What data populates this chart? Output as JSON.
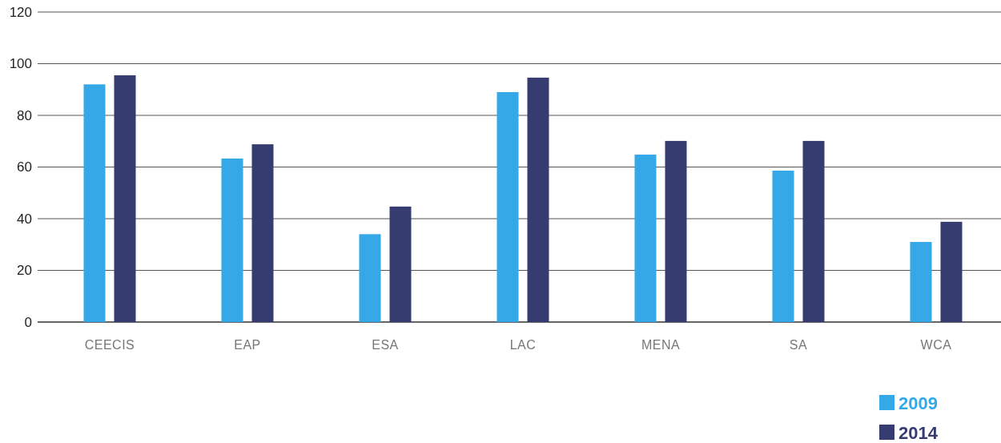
{
  "chart_data": {
    "type": "bar",
    "categories": [
      "CEECIS",
      "EAP",
      "ESA",
      "LAC",
      "MENA",
      "SA",
      "WCA"
    ],
    "series": [
      {
        "name": "2009",
        "color": "#35a8e8",
        "values": [
          92,
          63.3,
          34,
          89,
          64.8,
          58.6,
          31
        ]
      },
      {
        "name": "2014",
        "color": "#363c70",
        "values": [
          95.5,
          68.8,
          44.7,
          94.6,
          70.1,
          70.1,
          38.8
        ]
      }
    ],
    "ylim": [
      0,
      120
    ],
    "yticks": [
      0,
      20,
      40,
      60,
      80,
      100,
      120
    ],
    "grid": "y",
    "legend": "bottom right"
  }
}
